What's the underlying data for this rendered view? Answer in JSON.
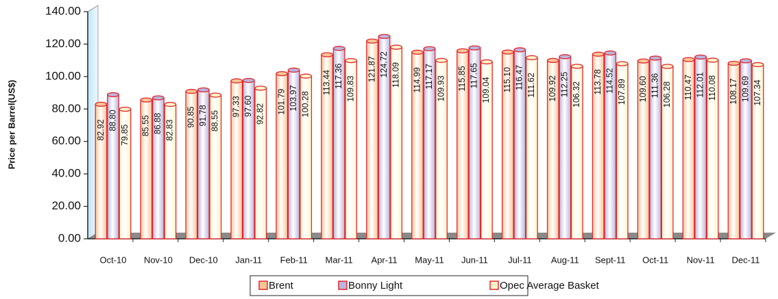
{
  "chart_data": {
    "type": "bar",
    "y_label": "Price per Barrel(US$)",
    "categories": [
      "Oct-10",
      "Nov-10",
      "Dec-10",
      "Jan-11",
      "Feb-11",
      "Mar-11",
      "Apr-11",
      "May-11",
      "Jun-11",
      "Jul-11",
      "Aug-11",
      "Sept-11",
      "Oct-11",
      "Nov-11",
      "Dec-11"
    ],
    "series": [
      {
        "name": "Brent",
        "color": "#f7c596",
        "values": [
          82.92,
          85.55,
          90.85,
          97.33,
          101.79,
          113.44,
          121.87,
          114.99,
          115.85,
          115.1,
          109.92,
          113.78,
          109.6,
          110.47,
          108.17
        ],
        "value_labels": [
          "82.92",
          "85.55",
          "90.85",
          "97.33",
          "101.79",
          "113.44",
          "121.87",
          "114.99",
          "115.85",
          "115.10",
          "109.92",
          "113.78",
          "109.60",
          "110.47",
          "108.17"
        ]
      },
      {
        "name": "Bonny Light",
        "color": "#b9b6de",
        "values": [
          88.8,
          86.88,
          91.78,
          97.6,
          103.97,
          117.36,
          124.72,
          117.17,
          117.65,
          116.47,
          112.25,
          114.52,
          111.36,
          112.01,
          109.69
        ],
        "value_labels": [
          "88.80",
          "86.88",
          "91.78",
          "97.60",
          "103.97",
          "117.36",
          "124.72",
          "117.17",
          "117.65",
          "116.47",
          "112.25",
          "114.52",
          "111.36",
          "112.01",
          "109.69"
        ]
      },
      {
        "name": "Opec Average Basket",
        "color": "#fbf4c8",
        "values": [
          79.85,
          82.83,
          88.55,
          92.82,
          100.28,
          109.83,
          118.09,
          109.93,
          109.04,
          111.62,
          106.32,
          107.89,
          106.28,
          110.08,
          107.34
        ],
        "value_labels": [
          "79.85",
          "82.83",
          "88.55",
          "92.82",
          "100.28",
          "109.83",
          "118.09",
          "109.93",
          "109.04",
          "111.62",
          "106.32",
          "107.89",
          "106.28",
          "110.08",
          "107.34"
        ]
      }
    ],
    "edge_color": "#e3262e",
    "ylim": [
      0,
      140
    ],
    "yticks": [
      {
        "value": 0,
        "label": "0.00"
      },
      {
        "value": 20,
        "label": "20.00"
      },
      {
        "value": 40,
        "label": "40.00"
      },
      {
        "value": 60,
        "label": "60.00"
      },
      {
        "value": 80,
        "label": "80.00"
      },
      {
        "value": 100,
        "label": "100.00"
      },
      {
        "value": 120,
        "label": "120.00"
      },
      {
        "value": 140,
        "label": "140.00"
      }
    ],
    "grid": false,
    "legend": "bottom"
  }
}
